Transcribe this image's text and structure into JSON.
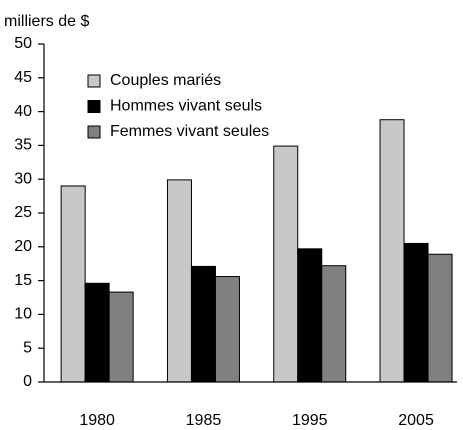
{
  "chart_data": {
    "type": "bar",
    "y_label": "milliers de $",
    "categories": [
      "1980",
      "1985",
      "1995",
      "2005"
    ],
    "series": [
      {
        "name": "Couples mariés",
        "color": "#c8c8c8",
        "values": [
          29,
          29.9,
          34.9,
          38.8
        ]
      },
      {
        "name": "Hommes vivant seuls",
        "color": "#000000",
        "values": [
          14.6,
          17.1,
          19.7,
          20.5
        ]
      },
      {
        "name": "Femmes vivant seules",
        "color": "#808080",
        "values": [
          13.3,
          15.6,
          17.2,
          18.9
        ]
      }
    ],
    "ylim": [
      0,
      50
    ],
    "yticks": [
      0,
      5,
      10,
      15,
      20,
      25,
      30,
      35,
      40,
      45,
      50
    ],
    "grid": false
  }
}
